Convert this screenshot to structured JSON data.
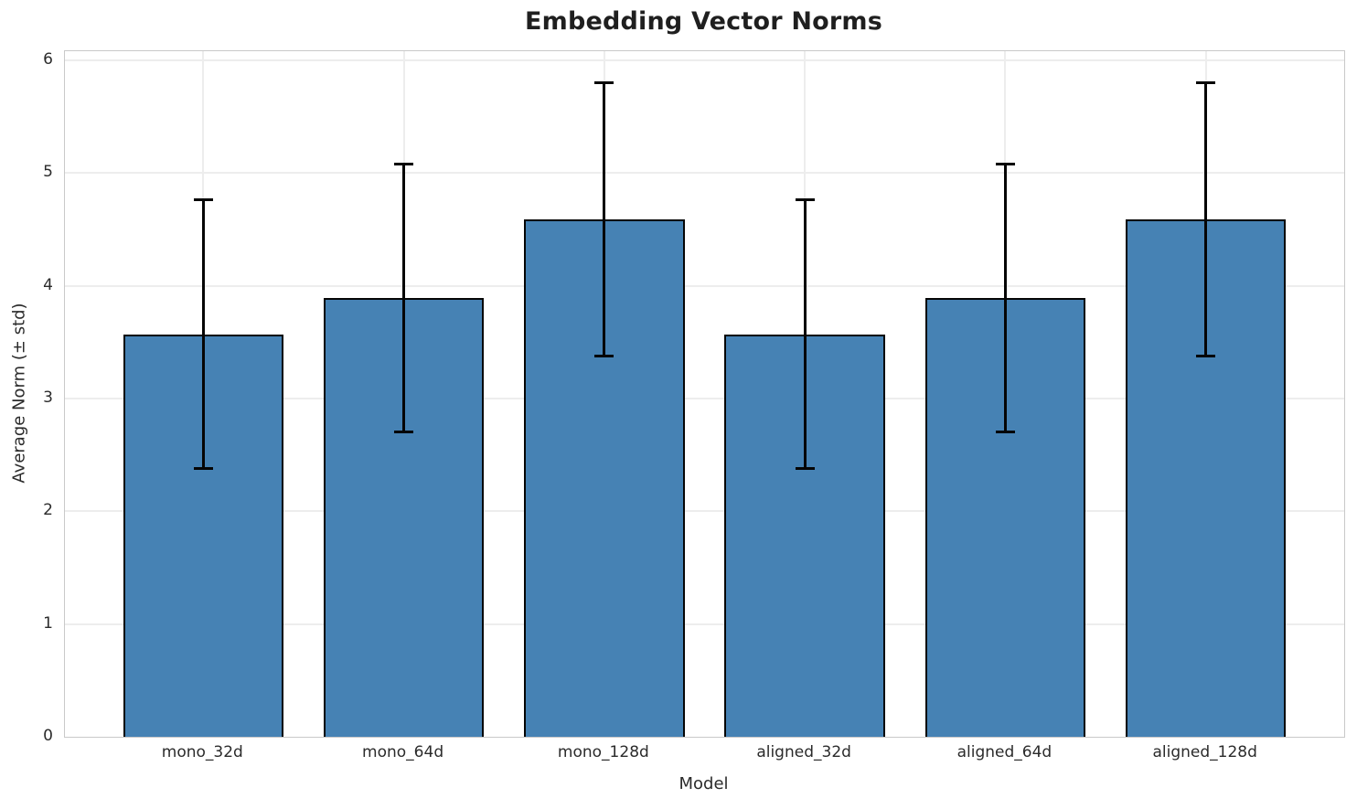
{
  "chart_data": {
    "type": "bar",
    "title": "Embedding Vector Norms",
    "xlabel": "Model",
    "ylabel": "Average Norm (± std)",
    "categories": [
      "mono_32d",
      "mono_64d",
      "mono_128d",
      "aligned_32d",
      "aligned_64d",
      "aligned_128d"
    ],
    "values": [
      3.57,
      3.89,
      4.59,
      3.57,
      3.89,
      4.59
    ],
    "errors": [
      1.19,
      1.19,
      1.21,
      1.19,
      1.19,
      1.21
    ],
    "error_tops": [
      4.76,
      5.08,
      5.8,
      4.76,
      5.08,
      5.8
    ],
    "error_bottoms": [
      2.38,
      2.7,
      3.38,
      2.38,
      2.7,
      3.38
    ],
    "yticks": [
      0,
      1,
      2,
      3,
      4,
      5,
      6
    ],
    "ylim": [
      0,
      6.08
    ],
    "xlim": [
      -0.69,
      5.69
    ],
    "bar_width": 0.8,
    "grid": true,
    "legend": "none",
    "colors": {
      "bar_fill": "#4682b4",
      "bar_edge": "#050505",
      "error_bar": "#050505",
      "grid_line": "#ededed",
      "spine": "#c9c9c9",
      "title_text": "#1f1f1f",
      "tick_text": "#2b2b2b"
    }
  }
}
